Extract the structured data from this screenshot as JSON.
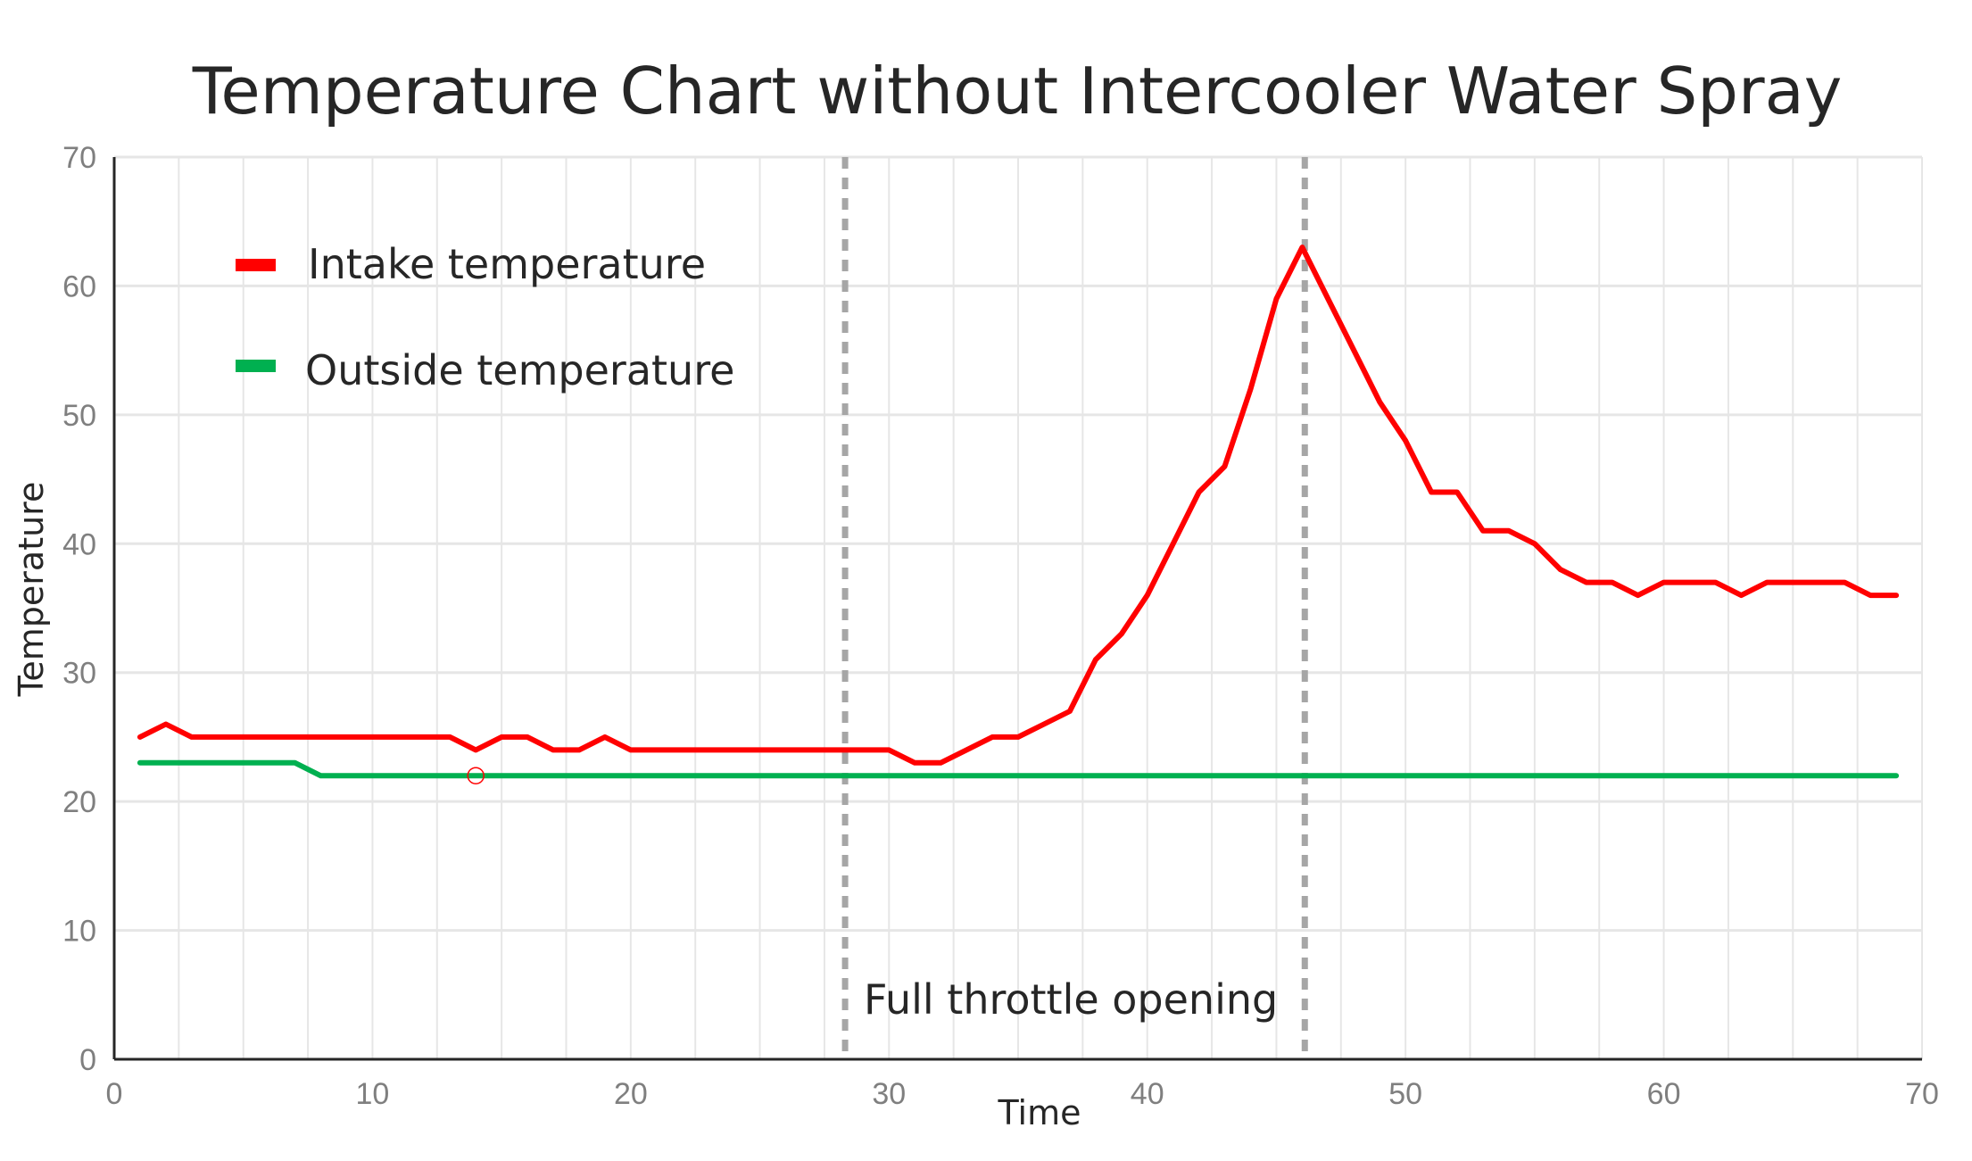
{
  "chart_data": {
    "type": "line",
    "title": "Temperature Chart without Intercooler Water Spray",
    "xlabel": "Time",
    "ylabel": "Temperature",
    "xlim": [
      0,
      70
    ],
    "ylim": [
      0,
      70
    ],
    "xticks": [
      0,
      10,
      20,
      30,
      40,
      50,
      60,
      70
    ],
    "yticks": [
      0,
      10,
      20,
      30,
      40,
      50,
      60,
      70
    ],
    "grid": true,
    "legend_position": "top-left",
    "series": [
      {
        "name": "Intake temperature",
        "color": "#ff0000",
        "x": [
          1,
          2,
          3,
          4,
          5,
          6,
          7,
          8,
          9,
          10,
          11,
          12,
          13,
          14,
          15,
          16,
          17,
          18,
          19,
          20,
          21,
          22,
          23,
          24,
          25,
          26,
          27,
          28,
          29,
          30,
          31,
          32,
          33,
          34,
          35,
          36,
          37,
          38,
          39,
          40,
          41,
          42,
          43,
          44,
          45,
          46,
          47,
          48,
          49,
          50,
          51,
          52,
          53,
          54,
          55,
          56,
          57,
          58,
          59,
          60,
          61,
          62,
          63,
          64,
          65,
          66,
          67,
          68,
          69
        ],
        "values": [
          25,
          26,
          25,
          25,
          25,
          25,
          25,
          25,
          25,
          25,
          25,
          25,
          25,
          24,
          25,
          25,
          24,
          24,
          25,
          24,
          24,
          24,
          24,
          24,
          24,
          24,
          24,
          24,
          24,
          24,
          23,
          23,
          24,
          25,
          25,
          26,
          27,
          31,
          33,
          36,
          40,
          44,
          46,
          52,
          59,
          63,
          59,
          55,
          51,
          48,
          44,
          44,
          41,
          41,
          40,
          38,
          37,
          37,
          36,
          37,
          37,
          37,
          36,
          37,
          37,
          37,
          37,
          36,
          36
        ]
      },
      {
        "name": "Outside temperature",
        "color": "#00b050",
        "x": [
          1,
          7,
          8,
          69
        ],
        "values": [
          23,
          23,
          22,
          22
        ]
      }
    ],
    "annotations": [
      {
        "type": "vline",
        "x": 28.3,
        "color": "#a6a6a6"
      },
      {
        "type": "vline",
        "x": 46.1,
        "color": "#a6a6a6"
      },
      {
        "type": "text",
        "text": "Full throttle opening"
      },
      {
        "type": "marker",
        "shape": "open-circle",
        "x": 14,
        "y": 22,
        "color": "#ff0000"
      }
    ]
  }
}
